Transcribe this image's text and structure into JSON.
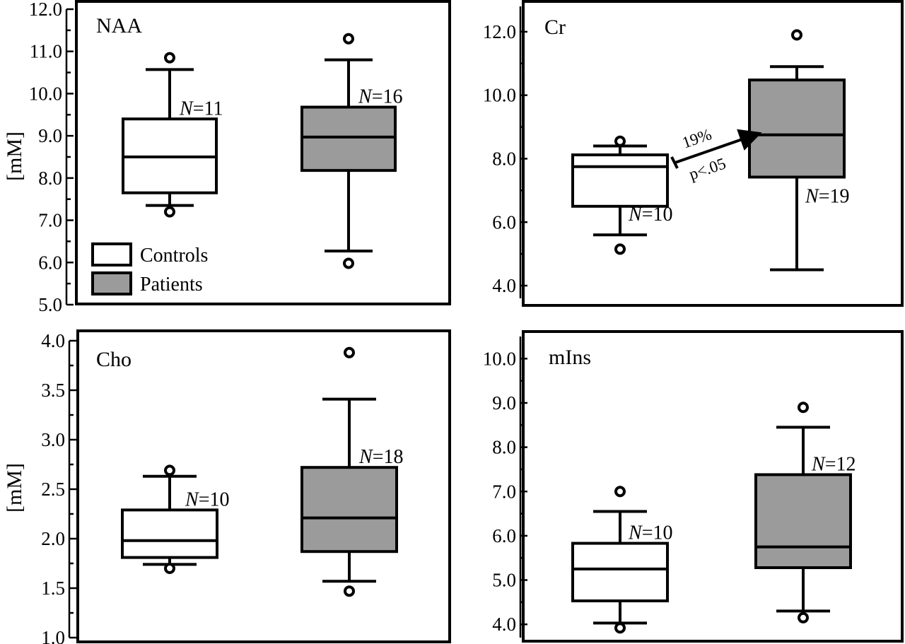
{
  "colors": {
    "controls": "#ffffff",
    "patients": "#9b9b9b",
    "ink": "#000000"
  },
  "legend": [
    {
      "label": "Controls",
      "color": "#ffffff"
    },
    {
      "label": "Patients",
      "color": "#9b9b9b"
    }
  ],
  "chart_data": [
    {
      "type": "box",
      "title": "NAA",
      "ylabel": "[mM]",
      "ylim": [
        5.0,
        12.0
      ],
      "yticks": [
        "5.0",
        "6.0",
        "7.0",
        "8.0",
        "9.0",
        "10.0",
        "11.0",
        "12.0"
      ],
      "legend_placement": "bottom-left",
      "series": [
        {
          "name": "Controls",
          "n_label": "N=11",
          "whisker_low": 7.35,
          "q1": 7.65,
          "median": 8.5,
          "q3": 9.4,
          "whisker_high": 10.57,
          "outliers": [
            7.2,
            10.85
          ]
        },
        {
          "name": "Patients",
          "n_label": "N=16",
          "whisker_low": 6.27,
          "q1": 8.18,
          "median": 8.97,
          "q3": 9.68,
          "whisker_high": 10.8,
          "outliers": [
            5.98,
            11.3
          ]
        }
      ]
    },
    {
      "type": "box",
      "title": "Cr",
      "ylabel": "",
      "ylim": [
        3.6,
        12.8
      ],
      "yticks": [
        "4.0",
        "6.0",
        "8.0",
        "10.0",
        "12.0"
      ],
      "annotation": {
        "line1": "19%",
        "line2": "p<.05"
      },
      "series": [
        {
          "name": "Controls",
          "n_label": "N=10",
          "whisker_low": 5.6,
          "q1": 6.5,
          "median": 7.75,
          "q3": 8.12,
          "whisker_high": 8.4,
          "outliers": [
            5.15,
            8.55
          ]
        },
        {
          "name": "Patients",
          "n_label": "N=19",
          "whisker_low": 4.5,
          "q1": 7.42,
          "median": 8.75,
          "q3": 10.48,
          "whisker_high": 10.9,
          "outliers": [
            11.9
          ]
        }
      ]
    },
    {
      "type": "box",
      "title": "Cho",
      "ylabel": "[mM]",
      "ylim": [
        1.0,
        4.0
      ],
      "yticks": [
        "1.0",
        "1.5",
        "2.0",
        "2.5",
        "3.0",
        "3.5",
        "4.0"
      ],
      "series": [
        {
          "name": "Controls",
          "n_label": "N=10",
          "whisker_low": 1.74,
          "q1": 1.81,
          "median": 1.98,
          "q3": 2.29,
          "whisker_high": 2.63,
          "outliers": [
            1.7,
            2.69
          ]
        },
        {
          "name": "Patients",
          "n_label": "N=18",
          "whisker_low": 1.57,
          "q1": 1.87,
          "median": 2.21,
          "q3": 2.72,
          "whisker_high": 3.41,
          "outliers": [
            1.47,
            3.88
          ]
        }
      ]
    },
    {
      "type": "box",
      "title": "mIns",
      "ylabel": "",
      "ylim": [
        3.7,
        10.5
      ],
      "yticks": [
        "4.0",
        "5.0",
        "6.0",
        "7.0",
        "8.0",
        "9.0",
        "10.0"
      ],
      "series": [
        {
          "name": "Controls",
          "n_label": "N=10",
          "whisker_low": 4.03,
          "q1": 4.53,
          "median": 5.25,
          "q3": 5.83,
          "whisker_high": 6.55,
          "outliers": [
            3.92,
            7.0
          ]
        },
        {
          "name": "Patients",
          "n_label": "N=12",
          "whisker_low": 4.3,
          "q1": 5.28,
          "median": 5.75,
          "q3": 7.38,
          "whisker_high": 8.45,
          "outliers": [
            4.15,
            8.9
          ]
        }
      ]
    }
  ]
}
